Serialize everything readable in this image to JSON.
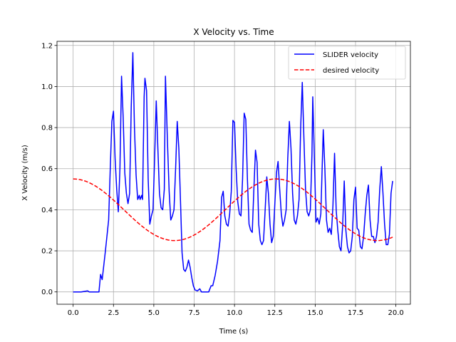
{
  "chart_data": {
    "type": "line",
    "title": "X Velocity vs. Time",
    "xlabel": "Time (s)",
    "ylabel": "X Velocity (m/s)",
    "xlim": [
      -1.0,
      20.9
    ],
    "ylim": [
      -0.06,
      1.22
    ],
    "xticks": [
      0.0,
      2.5,
      5.0,
      7.5,
      10.0,
      12.5,
      15.0,
      17.5,
      20.0
    ],
    "xtick_labels": [
      "0.0",
      "2.5",
      "5.0",
      "7.5",
      "10.0",
      "12.5",
      "15.0",
      "17.5",
      "20.0"
    ],
    "yticks": [
      0.0,
      0.2,
      0.4,
      0.6,
      0.8,
      1.0,
      1.2
    ],
    "ytick_labels": [
      "0.0",
      "0.2",
      "0.4",
      "0.6",
      "0.8",
      "1.0",
      "1.2"
    ],
    "grid": true,
    "legend_position": "top-right",
    "series": [
      {
        "name": "SLIDER velocity",
        "color": "#0000ff",
        "style": "solid",
        "points": [
          [
            0.0,
            0.0
          ],
          [
            0.5,
            0.0
          ],
          [
            0.9,
            0.005
          ],
          [
            1.0,
            0.0
          ],
          [
            1.1,
            0.0
          ],
          [
            1.6,
            0.0
          ],
          [
            1.7,
            0.085
          ],
          [
            1.8,
            0.06
          ],
          [
            2.0,
            0.2
          ],
          [
            2.2,
            0.35
          ],
          [
            2.3,
            0.6
          ],
          [
            2.4,
            0.83
          ],
          [
            2.5,
            0.88
          ],
          [
            2.6,
            0.65
          ],
          [
            2.7,
            0.5
          ],
          [
            2.8,
            0.39
          ],
          [
            2.9,
            0.6
          ],
          [
            3.0,
            1.05
          ],
          [
            3.1,
            0.85
          ],
          [
            3.2,
            0.58
          ],
          [
            3.3,
            0.48
          ],
          [
            3.4,
            0.43
          ],
          [
            3.5,
            0.48
          ],
          [
            3.6,
            0.9
          ],
          [
            3.7,
            1.165
          ],
          [
            3.8,
            0.8
          ],
          [
            3.9,
            0.57
          ],
          [
            4.0,
            0.45
          ],
          [
            4.1,
            0.47
          ],
          [
            4.15,
            0.45
          ],
          [
            4.25,
            0.47
          ],
          [
            4.3,
            0.45
          ],
          [
            4.4,
            0.95
          ],
          [
            4.45,
            1.04
          ],
          [
            4.55,
            0.98
          ],
          [
            4.65,
            0.55
          ],
          [
            4.75,
            0.33
          ],
          [
            4.85,
            0.37
          ],
          [
            4.95,
            0.4
          ],
          [
            5.05,
            0.65
          ],
          [
            5.15,
            0.93
          ],
          [
            5.25,
            0.7
          ],
          [
            5.35,
            0.48
          ],
          [
            5.45,
            0.41
          ],
          [
            5.55,
            0.4
          ],
          [
            5.65,
            0.5
          ],
          [
            5.72,
            1.05
          ],
          [
            5.85,
            0.72
          ],
          [
            5.95,
            0.49
          ],
          [
            6.05,
            0.35
          ],
          [
            6.15,
            0.37
          ],
          [
            6.25,
            0.4
          ],
          [
            6.35,
            0.6
          ],
          [
            6.45,
            0.83
          ],
          [
            6.55,
            0.7
          ],
          [
            6.65,
            0.45
          ],
          [
            6.75,
            0.19
          ],
          [
            6.85,
            0.11
          ],
          [
            6.95,
            0.1
          ],
          [
            7.05,
            0.12
          ],
          [
            7.15,
            0.155
          ],
          [
            7.25,
            0.12
          ],
          [
            7.35,
            0.07
          ],
          [
            7.45,
            0.03
          ],
          [
            7.55,
            0.01
          ],
          [
            7.7,
            0.005
          ],
          [
            7.85,
            0.015
          ],
          [
            7.95,
            0.0
          ],
          [
            8.1,
            0.0
          ],
          [
            8.2,
            0.0
          ],
          [
            8.4,
            0.0
          ],
          [
            8.55,
            0.03
          ],
          [
            8.65,
            0.03
          ],
          [
            8.8,
            0.08
          ],
          [
            8.95,
            0.15
          ],
          [
            9.1,
            0.25
          ],
          [
            9.2,
            0.46
          ],
          [
            9.3,
            0.49
          ],
          [
            9.4,
            0.37
          ],
          [
            9.5,
            0.33
          ],
          [
            9.6,
            0.32
          ],
          [
            9.7,
            0.38
          ],
          [
            9.8,
            0.49
          ],
          [
            9.9,
            0.835
          ],
          [
            10.0,
            0.825
          ],
          [
            10.1,
            0.6
          ],
          [
            10.2,
            0.44
          ],
          [
            10.3,
            0.38
          ],
          [
            10.4,
            0.37
          ],
          [
            10.5,
            0.55
          ],
          [
            10.6,
            0.87
          ],
          [
            10.7,
            0.84
          ],
          [
            10.8,
            0.55
          ],
          [
            10.9,
            0.33
          ],
          [
            11.0,
            0.3
          ],
          [
            11.1,
            0.29
          ],
          [
            11.2,
            0.5
          ],
          [
            11.3,
            0.69
          ],
          [
            11.4,
            0.63
          ],
          [
            11.5,
            0.33
          ],
          [
            11.6,
            0.25
          ],
          [
            11.7,
            0.23
          ],
          [
            11.8,
            0.25
          ],
          [
            11.9,
            0.4
          ],
          [
            12.0,
            0.56
          ],
          [
            12.1,
            0.48
          ],
          [
            12.2,
            0.33
          ],
          [
            12.3,
            0.24
          ],
          [
            12.4,
            0.27
          ],
          [
            12.5,
            0.43
          ],
          [
            12.6,
            0.58
          ],
          [
            12.7,
            0.635
          ],
          [
            12.8,
            0.5
          ],
          [
            12.9,
            0.38
          ],
          [
            13.0,
            0.32
          ],
          [
            13.1,
            0.35
          ],
          [
            13.2,
            0.4
          ],
          [
            13.3,
            0.65
          ],
          [
            13.4,
            0.83
          ],
          [
            13.5,
            0.7
          ],
          [
            13.6,
            0.48
          ],
          [
            13.7,
            0.35
          ],
          [
            13.8,
            0.33
          ],
          [
            13.9,
            0.37
          ],
          [
            14.0,
            0.45
          ],
          [
            14.1,
            0.8
          ],
          [
            14.2,
            1.02
          ],
          [
            14.3,
            0.75
          ],
          [
            14.4,
            0.5
          ],
          [
            14.5,
            0.39
          ],
          [
            14.6,
            0.37
          ],
          [
            14.7,
            0.4
          ],
          [
            14.8,
            0.67
          ],
          [
            14.85,
            0.95
          ],
          [
            14.95,
            0.65
          ],
          [
            15.05,
            0.34
          ],
          [
            15.15,
            0.36
          ],
          [
            15.25,
            0.33
          ],
          [
            15.35,
            0.38
          ],
          [
            15.5,
            0.79
          ],
          [
            15.6,
            0.6
          ],
          [
            15.7,
            0.35
          ],
          [
            15.8,
            0.29
          ],
          [
            15.9,
            0.31
          ],
          [
            16.0,
            0.28
          ],
          [
            16.1,
            0.42
          ],
          [
            16.2,
            0.675
          ],
          [
            16.3,
            0.4
          ],
          [
            16.4,
            0.3
          ],
          [
            16.5,
            0.22
          ],
          [
            16.6,
            0.2
          ],
          [
            16.7,
            0.32
          ],
          [
            16.8,
            0.54
          ],
          [
            16.9,
            0.3
          ],
          [
            17.0,
            0.22
          ],
          [
            17.1,
            0.19
          ],
          [
            17.2,
            0.2
          ],
          [
            17.3,
            0.27
          ],
          [
            17.4,
            0.45
          ],
          [
            17.5,
            0.51
          ],
          [
            17.6,
            0.31
          ],
          [
            17.7,
            0.3
          ],
          [
            17.8,
            0.22
          ],
          [
            17.9,
            0.21
          ],
          [
            18.0,
            0.27
          ],
          [
            18.1,
            0.38
          ],
          [
            18.2,
            0.47
          ],
          [
            18.3,
            0.52
          ],
          [
            18.4,
            0.35
          ],
          [
            18.5,
            0.27
          ],
          [
            18.6,
            0.27
          ],
          [
            18.7,
            0.24
          ],
          [
            18.8,
            0.27
          ],
          [
            18.9,
            0.34
          ],
          [
            19.0,
            0.5
          ],
          [
            19.1,
            0.61
          ],
          [
            19.2,
            0.48
          ],
          [
            19.3,
            0.33
          ],
          [
            19.4,
            0.23
          ],
          [
            19.5,
            0.23
          ],
          [
            19.6,
            0.28
          ],
          [
            19.7,
            0.48
          ],
          [
            19.8,
            0.54
          ]
        ]
      },
      {
        "name": "desired velocity",
        "color": "#ff0000",
        "style": "dashed",
        "function": "0.4 + 0.15*cos(0.5*t)",
        "x_range": [
          0.0,
          19.8
        ],
        "x_step": 0.1
      }
    ]
  }
}
